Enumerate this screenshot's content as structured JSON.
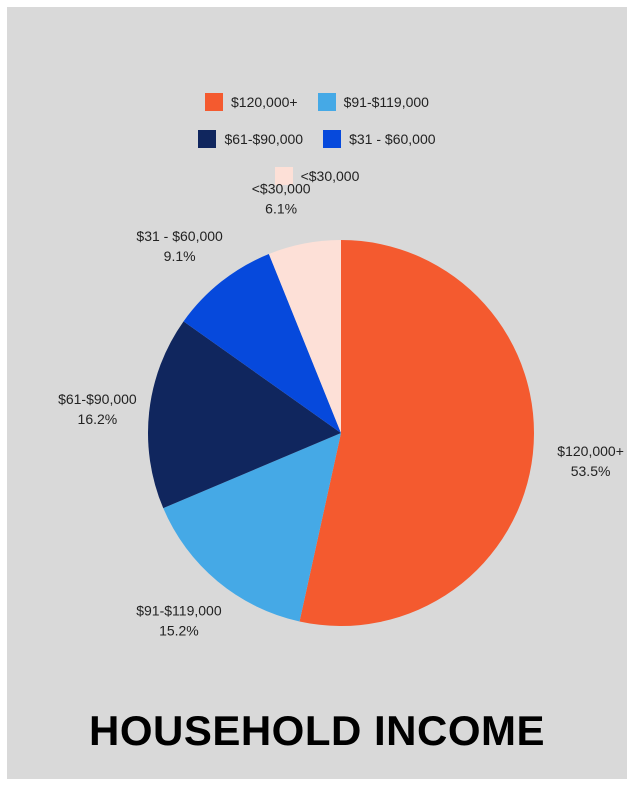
{
  "chart_data": {
    "type": "pie",
    "title": "HOUSEHOLD INCOME",
    "legend_placement": "top-center",
    "slices": [
      {
        "label": "$120,000+",
        "value": 53.5,
        "display": "53.5%",
        "color": "#f45a2f"
      },
      {
        "label": "$91-$119,000",
        "value": 15.2,
        "display": "15.2%",
        "color": "#45a9e6"
      },
      {
        "label": "$61-$90,000",
        "value": 16.2,
        "display": "16.2%",
        "color": "#10265e"
      },
      {
        "label": "$31 - $60,000",
        "value": 9.1,
        "display": "9.1%",
        "color": "#0649dc"
      },
      {
        "label": "<$30,000",
        "value": 6.1,
        "display": "6.1%",
        "color": "#fde0d7"
      }
    ]
  }
}
